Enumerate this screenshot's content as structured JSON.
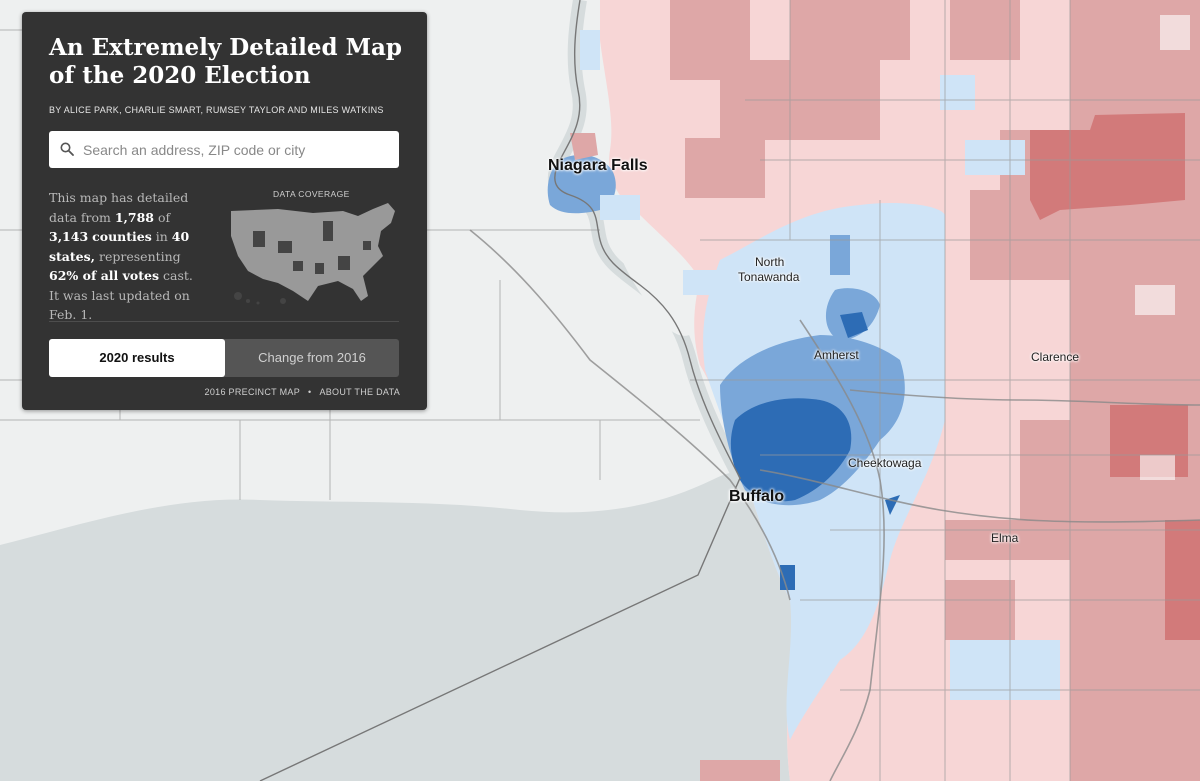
{
  "header": {
    "title": "An Extremely Detailed Map of the 2020 Election",
    "byline": "BY ALICE PARK, CHARLIE SMART, RUMSEY TAYLOR AND MILES WATKINS"
  },
  "search": {
    "placeholder": "Search an address, ZIP code or city"
  },
  "coverage": {
    "label": "DATA COVERAGE",
    "text_1": "This map has detailed data from ",
    "counties_detailed": "1,788",
    "text_2": " of ",
    "counties_total": "3,143",
    "text_3": "counties",
    "text_4": " in ",
    "states": "40 states,",
    "text_5": " representing ",
    "votes_share": "62% of all votes",
    "text_6": " cast. It was last updated on Feb. 1."
  },
  "toggle": {
    "option_1": "2020 results",
    "option_2": "Change from 2016",
    "selected": "2020 results"
  },
  "links": {
    "precinct_2016": "2016 PRECINCT MAP",
    "about": "ABOUT THE DATA"
  },
  "places": {
    "niagara_falls": "Niagara Falls",
    "north": "North",
    "tonawanda": "Tonawanda",
    "amherst": "Amherst",
    "clarence": "Clarence",
    "cheektowaga": "Cheektowaga",
    "buffalo": "Buffalo",
    "elma": "Elma"
  },
  "colors": {
    "dem_strong": "#2d6cb5",
    "dem_mid": "#7aa7d9",
    "dem_light": "#cfe4f7",
    "rep_light": "#f7d6d6",
    "rep_mid": "#dea7a7",
    "rep_strong": "#d27a7a",
    "water": "#d6dcdd",
    "land": "#eef0f0",
    "panel": "#333333"
  }
}
